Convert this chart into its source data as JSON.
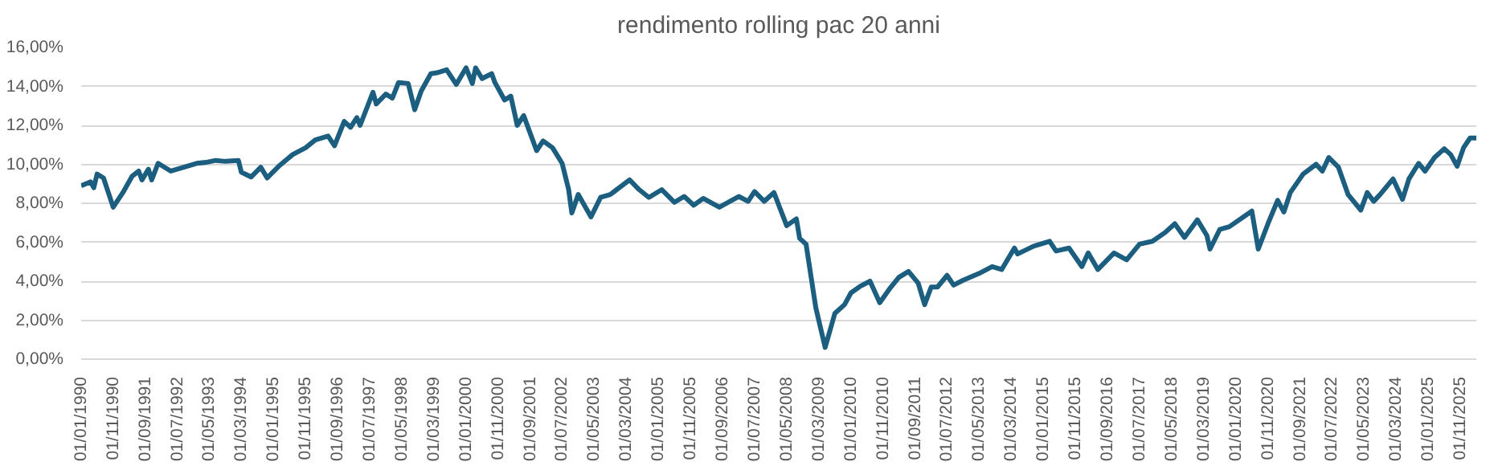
{
  "chart_data": {
    "type": "line",
    "title": "rendimento rolling pac 20 anni",
    "x": [
      "1990-01",
      "1990-04",
      "1990-05",
      "1990-06",
      "1990-08",
      "1990-11",
      "1991-02",
      "1991-05",
      "1991-07",
      "1991-08",
      "1991-10",
      "1991-11",
      "1992-01",
      "1992-05",
      "1992-09",
      "1993-01",
      "1993-04",
      "1993-07",
      "1993-10",
      "1994-02",
      "1994-03",
      "1994-06",
      "1994-09",
      "1994-11",
      "1995-03",
      "1995-07",
      "1995-11",
      "1996-02",
      "1996-06",
      "1996-08",
      "1996-11",
      "1997-01",
      "1997-03",
      "1997-04",
      "1997-08",
      "1997-09",
      "1997-12",
      "1998-02",
      "1998-04",
      "1998-07",
      "1998-09",
      "1998-11",
      "1999-02",
      "1999-04",
      "1999-07",
      "1999-10",
      "2000-01",
      "2000-03",
      "2000-04",
      "2000-06",
      "2000-09",
      "2000-10",
      "2001-01",
      "2001-03",
      "2001-05",
      "2001-07",
      "2001-11",
      "2002-01",
      "2002-04",
      "2002-07",
      "2002-09",
      "2002-10",
      "2002-12",
      "2003-04",
      "2003-07",
      "2003-10",
      "2004-04",
      "2004-07",
      "2004-10",
      "2005-02",
      "2005-06",
      "2005-09",
      "2005-12",
      "2006-03",
      "2006-08",
      "2007-02",
      "2007-05",
      "2007-07",
      "2007-10",
      "2008-01",
      "2008-05",
      "2008-08",
      "2008-09",
      "2008-11",
      "2009-02",
      "2009-05",
      "2009-08",
      "2009-11",
      "2010-01",
      "2010-04",
      "2010-07",
      "2010-10",
      "2011-01",
      "2011-04",
      "2011-07",
      "2011-10",
      "2011-12",
      "2012-02",
      "2012-04",
      "2012-07",
      "2012-09",
      "2012-12",
      "2013-05",
      "2013-09",
      "2013-12",
      "2014-04",
      "2014-05",
      "2014-10",
      "2015-03",
      "2015-05",
      "2015-09",
      "2016-01",
      "2016-03",
      "2016-06",
      "2016-11",
      "2017-03",
      "2017-07",
      "2017-11",
      "2018-03",
      "2018-06",
      "2018-09",
      "2019-01",
      "2019-04",
      "2019-05",
      "2019-08",
      "2019-11",
      "2020-06",
      "2020-08",
      "2020-11",
      "2021-02",
      "2021-04",
      "2021-06",
      "2021-10",
      "2022-02",
      "2022-04",
      "2022-06",
      "2022-09",
      "2022-12",
      "2023-04",
      "2023-06",
      "2023-08",
      "2023-10",
      "2024-02",
      "2024-05",
      "2024-07",
      "2024-10",
      "2024-12",
      "2025-03",
      "2025-06",
      "2025-08",
      "2025-10",
      "2025-12",
      "2026-02",
      "2026-04"
    ],
    "series": [
      {
        "color": "#1b5e80",
        "values": [
          8.9,
          9.1,
          8.8,
          9.5,
          9.3,
          7.8,
          8.55,
          9.4,
          9.65,
          9.2,
          9.75,
          9.2,
          10.05,
          9.65,
          9.85,
          10.05,
          10.1,
          10.2,
          10.15,
          10.2,
          9.6,
          9.35,
          9.85,
          9.3,
          9.95,
          10.5,
          10.85,
          11.25,
          11.45,
          10.95,
          12.2,
          11.9,
          12.4,
          12.0,
          13.7,
          13.1,
          13.6,
          13.4,
          14.2,
          14.15,
          12.8,
          13.75,
          14.65,
          14.7,
          14.85,
          14.1,
          14.95,
          14.15,
          14.95,
          14.4,
          14.65,
          14.2,
          13.3,
          13.5,
          12.0,
          12.5,
          10.7,
          11.2,
          10.85,
          10.05,
          8.7,
          7.5,
          8.45,
          7.3,
          8.3,
          8.45,
          9.2,
          8.7,
          8.3,
          8.7,
          8.05,
          8.35,
          7.9,
          8.25,
          7.8,
          8.35,
          8.1,
          8.6,
          8.1,
          8.55,
          6.85,
          7.2,
          6.2,
          5.9,
          2.65,
          0.6,
          2.35,
          2.8,
          3.4,
          3.75,
          4.0,
          2.9,
          3.6,
          4.2,
          4.5,
          3.9,
          2.8,
          3.7,
          3.7,
          4.3,
          3.8,
          4.05,
          4.4,
          4.75,
          4.6,
          5.7,
          5.4,
          5.8,
          6.05,
          5.55,
          5.7,
          4.75,
          5.45,
          4.6,
          5.45,
          5.1,
          5.9,
          6.05,
          6.5,
          6.95,
          6.25,
          7.15,
          6.35,
          5.65,
          6.65,
          6.8,
          7.6,
          5.65,
          6.95,
          8.15,
          7.55,
          8.55,
          9.5,
          10.0,
          9.65,
          10.35,
          9.85,
          8.45,
          7.65,
          8.55,
          8.1,
          8.45,
          9.25,
          8.2,
          9.25,
          10.05,
          9.65,
          10.35,
          10.8,
          10.5,
          9.9,
          10.85,
          11.35,
          11.35
        ]
      }
    ],
    "xlim": [
      "1990-01",
      "2026-04"
    ],
    "xticks": [
      {
        "value": "1990-01",
        "label": "01/01/1990"
      },
      {
        "value": "1990-11",
        "label": "01/11/1990"
      },
      {
        "value": "1991-09",
        "label": "01/09/1991"
      },
      {
        "value": "1992-07",
        "label": "01/07/1992"
      },
      {
        "value": "1993-05",
        "label": "01/05/1993"
      },
      {
        "value": "1994-03",
        "label": "01/03/1994"
      },
      {
        "value": "1995-01",
        "label": "01/01/1995"
      },
      {
        "value": "1995-11",
        "label": "01/11/1995"
      },
      {
        "value": "1996-09",
        "label": "01/09/1996"
      },
      {
        "value": "1997-07",
        "label": "01/07/1997"
      },
      {
        "value": "1998-05",
        "label": "01/05/1998"
      },
      {
        "value": "1999-03",
        "label": "01/03/1999"
      },
      {
        "value": "2000-01",
        "label": "01/01/2000"
      },
      {
        "value": "2000-11",
        "label": "01/11/2000"
      },
      {
        "value": "2001-09",
        "label": "01/09/2001"
      },
      {
        "value": "2002-07",
        "label": "01/07/2002"
      },
      {
        "value": "2003-05",
        "label": "01/05/2003"
      },
      {
        "value": "2004-03",
        "label": "01/03/2004"
      },
      {
        "value": "2005-01",
        "label": "01/01/2005"
      },
      {
        "value": "2005-11",
        "label": "01/11/2005"
      },
      {
        "value": "2006-09",
        "label": "01/09/2006"
      },
      {
        "value": "2007-07",
        "label": "01/07/2007"
      },
      {
        "value": "2008-05",
        "label": "01/05/2008"
      },
      {
        "value": "2009-03",
        "label": "01/03/2009"
      },
      {
        "value": "2010-01",
        "label": "01/01/2010"
      },
      {
        "value": "2010-11",
        "label": "01/11/2010"
      },
      {
        "value": "2011-09",
        "label": "01/09/2011"
      },
      {
        "value": "2012-07",
        "label": "01/07/2012"
      },
      {
        "value": "2013-05",
        "label": "01/05/2013"
      },
      {
        "value": "2014-03",
        "label": "01/03/2014"
      },
      {
        "value": "2015-01",
        "label": "01/01/2015"
      },
      {
        "value": "2015-11",
        "label": "01/11/2015"
      },
      {
        "value": "2016-09",
        "label": "01/09/2016"
      },
      {
        "value": "2017-07",
        "label": "01/07/2017"
      },
      {
        "value": "2018-05",
        "label": "01/05/2018"
      },
      {
        "value": "2019-03",
        "label": "01/03/2019"
      },
      {
        "value": "2020-01",
        "label": "01/01/2020"
      },
      {
        "value": "2020-11",
        "label": "01/11/2020"
      },
      {
        "value": "2021-09",
        "label": "01/09/2021"
      },
      {
        "value": "2022-07",
        "label": "01/07/2022"
      },
      {
        "value": "2023-05",
        "label": "01/05/2023"
      },
      {
        "value": "2024-03",
        "label": "01/03/2024"
      },
      {
        "value": "2025-01",
        "label": "01/01/2025"
      },
      {
        "value": "2025-11",
        "label": "01/11/2025"
      }
    ],
    "ylim": [
      0,
      16
    ],
    "yticks": [
      {
        "value": 0,
        "label": "0,00%"
      },
      {
        "value": 2,
        "label": "2,00%"
      },
      {
        "value": 4,
        "label": "4,00%"
      },
      {
        "value": 6,
        "label": "6,00%"
      },
      {
        "value": 8,
        "label": "8,00%"
      },
      {
        "value": 10,
        "label": "10,00%"
      },
      {
        "value": 12,
        "label": "12,00%"
      },
      {
        "value": 14,
        "label": "14,00%"
      },
      {
        "value": 16,
        "label": "16,00%"
      }
    ],
    "grid": "y",
    "marker": "none",
    "line_style": "solid"
  }
}
